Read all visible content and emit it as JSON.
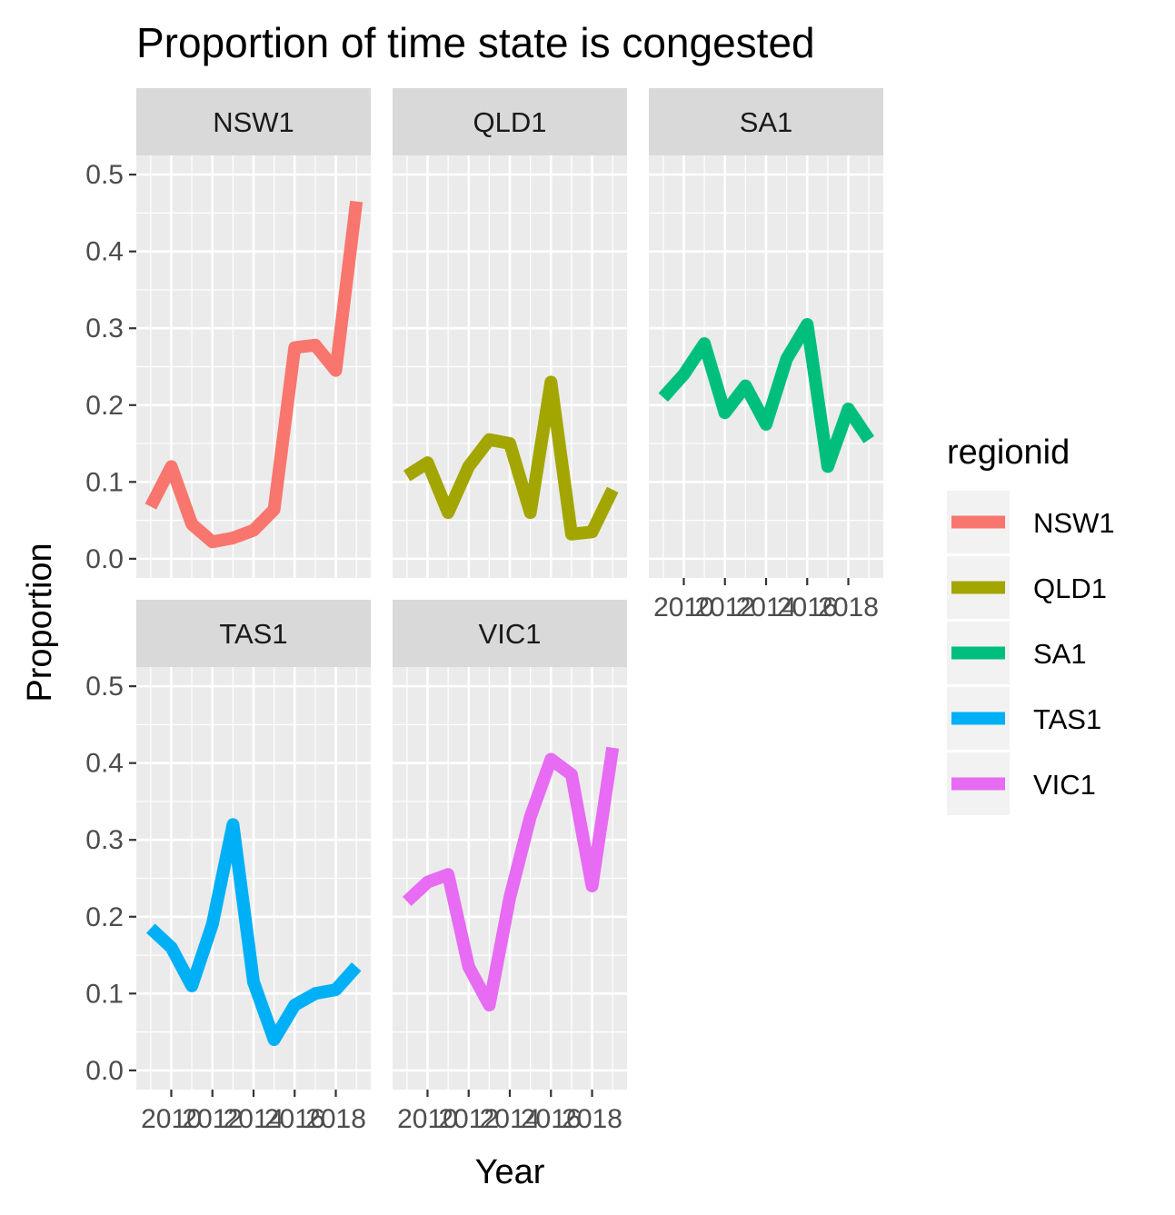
{
  "chart_data": {
    "type": "line",
    "title": "Proportion of time state is congested",
    "xlabel": "Year",
    "ylabel": "Proportion",
    "ylim": [
      -0.025,
      0.525
    ],
    "xlim": [
      2008.3,
      2019.7
    ],
    "y_ticks": [
      "0.0",
      "0.1",
      "0.2",
      "0.3",
      "0.4",
      "0.5"
    ],
    "x_ticks": [
      "2010",
      "2012",
      "2014",
      "2016",
      "2018"
    ],
    "grid": true,
    "facet_by": "regionid",
    "legend": {
      "title": "regionid",
      "position": "right"
    },
    "x": [
      2009,
      2010,
      2011,
      2012,
      2013,
      2014,
      2015,
      2016,
      2017,
      2018,
      2019
    ],
    "series": [
      {
        "name": "NSW1",
        "color": "#F8766D",
        "values": [
          0.068,
          0.12,
          0.045,
          0.022,
          0.027,
          0.037,
          0.064,
          0.275,
          0.278,
          0.245,
          0.465
        ]
      },
      {
        "name": "QLD1",
        "color": "#A3A500",
        "values": [
          0.108,
          0.125,
          0.06,
          0.12,
          0.155,
          0.15,
          0.06,
          0.23,
          0.032,
          0.035,
          0.09
        ]
      },
      {
        "name": "SA1",
        "color": "#00BF7D",
        "values": [
          0.21,
          0.24,
          0.28,
          0.19,
          0.225,
          0.175,
          0.26,
          0.305,
          0.12,
          0.195,
          0.155
        ]
      },
      {
        "name": "TAS1",
        "color": "#00B0F6",
        "values": [
          0.185,
          0.16,
          0.11,
          0.19,
          0.32,
          0.115,
          0.04,
          0.085,
          0.1,
          0.105,
          0.135
        ]
      },
      {
        "name": "VIC1",
        "color": "#E76BF3",
        "values": [
          0.22,
          0.245,
          0.255,
          0.135,
          0.085,
          0.225,
          0.33,
          0.405,
          0.385,
          0.24,
          0.42
        ]
      }
    ]
  }
}
